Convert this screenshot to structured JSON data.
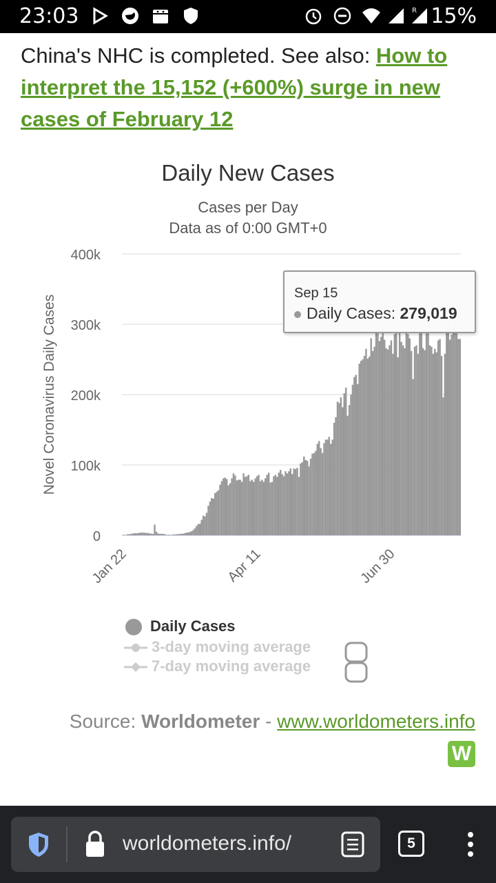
{
  "status_bar": {
    "time": "23:03",
    "battery": "15%",
    "icons": [
      "play-icon",
      "firefox-icon",
      "android-icon",
      "shield-icon",
      "alarm-icon",
      "dnd-icon",
      "wifi-icon",
      "signal-icon",
      "roaming-signal-icon"
    ]
  },
  "article": {
    "text": "China's NHC is completed. See also: ",
    "link": "How to interpret the 15,152 (+600%) surge in new cases of February 12"
  },
  "chart_data": {
    "type": "bar",
    "title": "Daily New Cases",
    "subtitle1": "Cases per Day",
    "subtitle2": "Data as of 0:00 GMT+0",
    "ylabel": "Novel Coronavirus Daily Cases",
    "ylim": [
      0,
      400000
    ],
    "yticks": [
      "0",
      "100k",
      "200k",
      "300k",
      "400k"
    ],
    "xticks": [
      "Jan 22",
      "Apr 11",
      "Jun 30"
    ],
    "x_start": "Jan 22",
    "x_end": "Sep 15",
    "grid": true,
    "series": [
      {
        "name": "Daily Cases",
        "color": "#999999",
        "values": [
          500,
          600,
          400,
          1700,
          1500,
          2100,
          2600,
          3000,
          2800,
          3100,
          3900,
          3700,
          3900,
          3700,
          3200,
          3400,
          2600,
          2500,
          2000,
          15152,
          5100,
          2600,
          2000,
          2200,
          1900,
          1800,
          550,
          900,
          550,
          600,
          1100,
          1200,
          1500,
          1700,
          2100,
          2200,
          2400,
          3000,
          3800,
          4000,
          4700,
          5700,
          7500,
          10000,
          13500,
          16000,
          16500,
          22000,
          28000,
          27000,
          32000,
          42000,
          48000,
          53000,
          52000,
          60000,
          62000,
          64000,
          72000,
          77000,
          81000,
          82000,
          80000,
          71000,
          74000,
          81000,
          88000,
          85000,
          78000,
          79000,
          79000,
          76000,
          88000,
          83000,
          84000,
          86000,
          77000,
          79000,
          76000,
          81000,
          84000,
          86000,
          77000,
          79000,
          76000,
          81000,
          86000,
          89000,
          75000,
          76000,
          84000,
          86000,
          83000,
          89000,
          93000,
          87000,
          84000,
          91000,
          88000,
          91000,
          95000,
          87000,
          95000,
          94000,
          96000,
          83000,
          102000,
          104000,
          112000,
          107000,
          106000,
          98000,
          109000,
          116000,
          117000,
          120000,
          130000,
          134000,
          124000,
          117000,
          131000,
          136000,
          136000,
          140000,
          130000,
          136000,
          160000,
          168000,
          190000,
          188000,
          196000,
          182000,
          202000,
          210000,
          170000,
          185000,
          200000,
          214000,
          225000,
          228000,
          215000,
          244000,
          248000,
          250000,
          255000,
          265000,
          251000,
          254000,
          280000,
          262000,
          268000,
          290000,
          287000,
          276000,
          282000,
          294000,
          278000,
          266000,
          264000,
          270000,
          277000,
          258000,
          286000,
          290000,
          253000,
          289000,
          275000,
          270000,
          266000,
          289000,
          286000,
          280000,
          262000,
          222000,
          268000,
          270000,
          258000,
          287000,
          291000,
          266000,
          263000,
          287000,
          287000,
          270000,
          268000,
          258000,
          265000,
          260000,
          277000,
          279000,
          255000,
          196000,
          258000,
          291000,
          303000,
          278000,
          285000,
          295000,
          295000,
          287000,
          279000,
          279019
        ]
      }
    ]
  },
  "legend": {
    "items": [
      {
        "label": "Daily Cases",
        "active": true
      },
      {
        "label": "3-day moving average",
        "active": false
      },
      {
        "label": "7-day moving average",
        "active": false
      }
    ]
  },
  "tooltip": {
    "date": "Sep 15",
    "label": "Daily Cases: ",
    "value": "279,019"
  },
  "source": {
    "prefix": "Source: ",
    "name": "Worldometer",
    "sep": " - ",
    "url": "www.worldometers.info",
    "logo": "W"
  },
  "browser": {
    "url": "worldometers.info/",
    "tab_count": "5"
  },
  "colors": {
    "link": "#5a9a28",
    "bar": "#999999",
    "status_bg": "#000000",
    "browser_bg": "#202124"
  }
}
